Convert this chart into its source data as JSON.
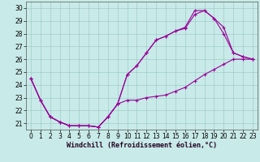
{
  "bg_color": "#c8eae8",
  "grid_color": "#a0ccc8",
  "line_color": "#990099",
  "xlabel": "Windchill (Refroidissement éolien,°C)",
  "xlim_min": -0.5,
  "xlim_max": 23.5,
  "ylim_min": 20.5,
  "ylim_max": 30.5,
  "xticks": [
    0,
    1,
    2,
    3,
    4,
    5,
    6,
    7,
    8,
    9,
    10,
    11,
    12,
    13,
    14,
    15,
    16,
    17,
    18,
    19,
    20,
    21,
    22,
    23
  ],
  "yticks": [
    21,
    22,
    23,
    24,
    25,
    26,
    27,
    28,
    29,
    30
  ],
  "line1_x": [
    0,
    1,
    2,
    3,
    4,
    5,
    6,
    7,
    8,
    9,
    10,
    11,
    12,
    13,
    14,
    15,
    16,
    17,
    18,
    19,
    20,
    21,
    22,
    23
  ],
  "line1_y": [
    24.5,
    22.8,
    21.5,
    21.1,
    20.8,
    20.8,
    20.8,
    20.7,
    21.5,
    22.5,
    22.8,
    22.8,
    23.0,
    23.1,
    23.2,
    23.5,
    23.8,
    24.3,
    24.8,
    25.2,
    25.6,
    26.0,
    26.0,
    26.0
  ],
  "line2_x": [
    0,
    1,
    2,
    3,
    4,
    5,
    6,
    7,
    8,
    9,
    10,
    11,
    12,
    13,
    14,
    15,
    16,
    17,
    18,
    19,
    20,
    21,
    22,
    23
  ],
  "line2_y": [
    24.5,
    22.8,
    21.5,
    21.1,
    20.8,
    20.8,
    20.8,
    20.7,
    21.5,
    22.5,
    24.8,
    25.5,
    26.5,
    27.5,
    27.8,
    28.2,
    28.4,
    29.5,
    29.8,
    29.2,
    28.0,
    26.5,
    26.2,
    26.0
  ],
  "line3_x": [
    0,
    1,
    2,
    3,
    4,
    5,
    6,
    7,
    8,
    9,
    10,
    11,
    12,
    13,
    14,
    15,
    16,
    17,
    18,
    19,
    20,
    21,
    22,
    23
  ],
  "line3_y": [
    24.5,
    22.8,
    21.5,
    21.1,
    20.8,
    20.8,
    20.8,
    20.7,
    21.5,
    22.5,
    24.8,
    25.5,
    26.5,
    27.5,
    27.8,
    28.2,
    28.5,
    29.8,
    29.8,
    29.2,
    28.5,
    26.5,
    26.2,
    26.0
  ],
  "tick_labelsize": 5.5,
  "xlabel_fontsize": 6.0
}
